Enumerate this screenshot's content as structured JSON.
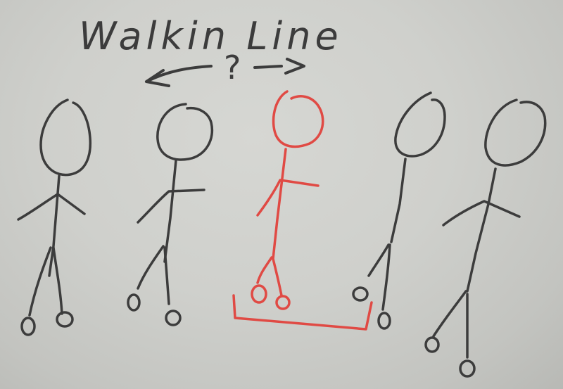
{
  "whiteboard": {
    "title": "Walkin Line",
    "question_mark": "?",
    "ink_dark": "#3c3c3c",
    "ink_red": "#e04a44",
    "figures": [
      {
        "id": "figure-1",
        "color": "dark"
      },
      {
        "id": "figure-2",
        "color": "dark"
      },
      {
        "id": "figure-3",
        "color": "red"
      },
      {
        "id": "figure-4",
        "color": "dark"
      },
      {
        "id": "figure-5",
        "color": "dark"
      }
    ]
  }
}
